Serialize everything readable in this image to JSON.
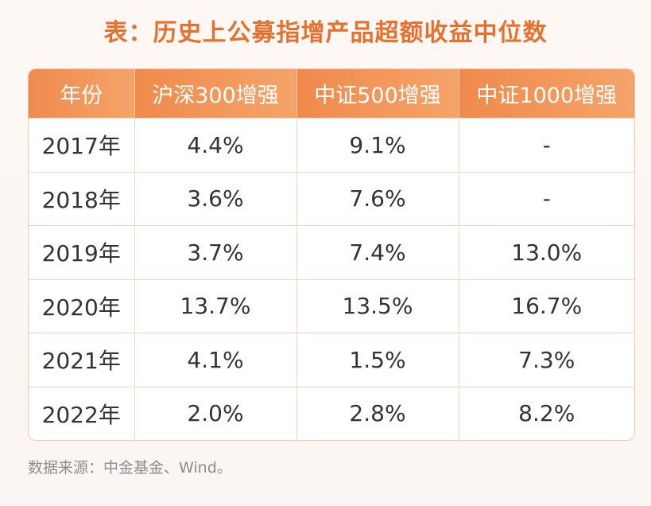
{
  "title": "表：历史上公募指增产品超额收益中位数",
  "chart_data": {
    "type": "table",
    "columns": [
      "年份",
      "沪深300增强",
      "中证500增强",
      "中证1000增强"
    ],
    "rows": [
      [
        "2017年",
        "4.4%",
        "9.1%",
        "-"
      ],
      [
        "2018年",
        "3.6%",
        "7.6%",
        "-"
      ],
      [
        "2019年",
        "3.7%",
        "7.4%",
        "13.0%"
      ],
      [
        "2020年",
        "13.7%",
        "13.5%",
        "16.7%"
      ],
      [
        "2021年",
        "4.1%",
        "1.5%",
        "7.3%"
      ],
      [
        "2022年",
        "2.0%",
        "2.8%",
        "8.2%"
      ]
    ]
  },
  "source": "数据来源：中金基金、Wind。",
  "colors": {
    "title": "#e8702f",
    "header_bg": "#f08a4c",
    "border": "#f5d3be"
  }
}
